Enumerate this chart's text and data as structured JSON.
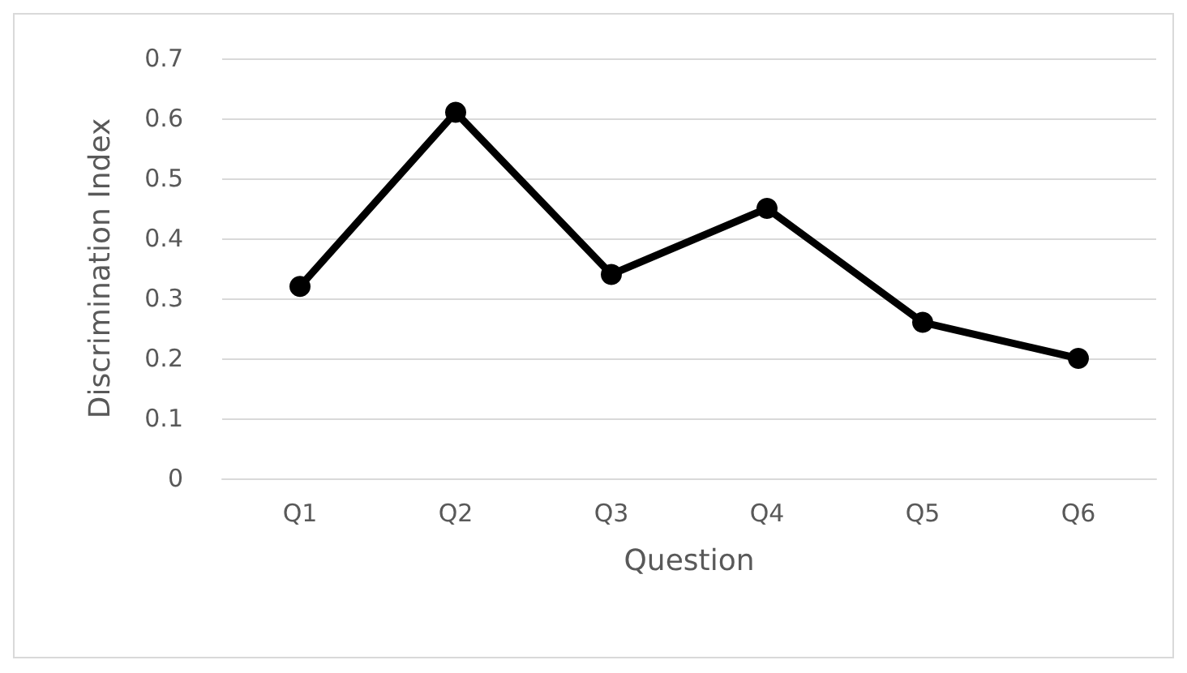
{
  "chart_data": {
    "type": "line",
    "xlabel": "Question",
    "ylabel": "Discrimination Index",
    "categories": [
      "Q1",
      "Q2",
      "Q3",
      "Q4",
      "Q5",
      "Q6"
    ],
    "series": [
      {
        "color": "#000000",
        "values": [
          0.32,
          0.61,
          0.34,
          0.45,
          0.26,
          0.2
        ]
      }
    ],
    "ylim": [
      0,
      0.7
    ],
    "yticks": [
      0,
      0.1,
      0.2,
      0.3,
      0.4,
      0.5,
      0.6,
      0.7
    ],
    "grid": "y",
    "marker": "circle",
    "line_style": "solid"
  }
}
